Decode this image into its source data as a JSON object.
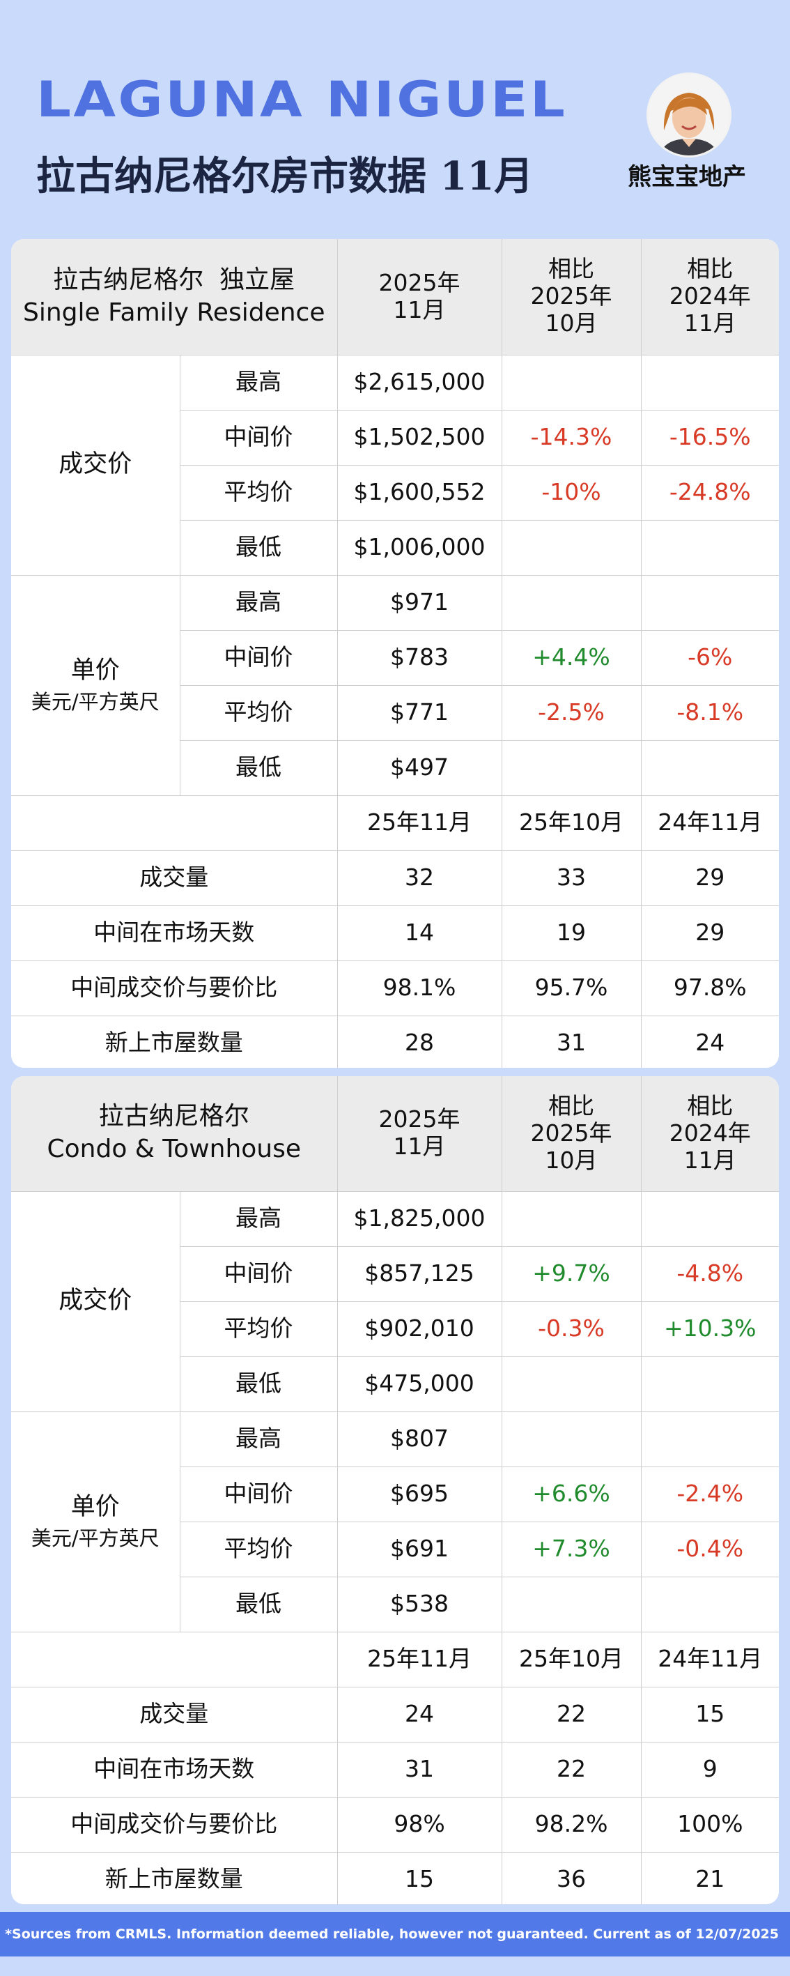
{
  "header": {
    "title": "LAGUNA NIGUEL",
    "subtitle": "拉古纳尼格尔房市数据 11月",
    "agency": "熊宝宝地产"
  },
  "sections": [
    {
      "header": {
        "type_cn": "拉古纳尼格尔  独立屋",
        "type_en": "Single Family Residence",
        "col_current": [
          "2025年",
          "11月"
        ],
        "col_mom": [
          "相比",
          "2025年",
          "10月"
        ],
        "col_yoy": [
          "相比",
          "2024年",
          "11月"
        ]
      },
      "price": {
        "group": "成交价",
        "rows": [
          {
            "label": "最高",
            "value": "$2,615,000",
            "mom": "",
            "yoy": ""
          },
          {
            "label": "中间价",
            "value": "$1,502,500",
            "mom": "-14.3%",
            "yoy": "-16.5%"
          },
          {
            "label": "平均价",
            "value": "$1,600,552",
            "mom": "-10%",
            "yoy": "-24.8%"
          },
          {
            "label": "最低",
            "value": "$1,006,000",
            "mom": "",
            "yoy": ""
          }
        ]
      },
      "unit_price": {
        "group": "单价",
        "unit": "美元/平方英尺",
        "rows": [
          {
            "label": "最高",
            "value": "$971",
            "mom": "",
            "yoy": ""
          },
          {
            "label": "中间价",
            "value": "$783",
            "mom": "+4.4%",
            "yoy": "-6%"
          },
          {
            "label": "平均价",
            "value": "$771",
            "mom": "-2.5%",
            "yoy": "-8.1%"
          },
          {
            "label": "最低",
            "value": "$497",
            "mom": "",
            "yoy": ""
          }
        ]
      },
      "periods": [
        "25年11月",
        "25年10月",
        "24年11月"
      ],
      "stats": [
        {
          "label": "成交量",
          "values": [
            "32",
            "33",
            "29"
          ]
        },
        {
          "label": "中间在市场天数",
          "values": [
            "14",
            "19",
            "29"
          ]
        },
        {
          "label": "中间成交价与要价比",
          "values": [
            "98.1%",
            "95.7%",
            "97.8%"
          ]
        },
        {
          "label": "新上市屋数量",
          "values": [
            "28",
            "31",
            "24"
          ]
        }
      ]
    },
    {
      "header": {
        "type_cn": "拉古纳尼格尔",
        "type_en": "Condo & Townhouse",
        "col_current": [
          "2025年",
          "11月"
        ],
        "col_mom": [
          "相比",
          "2025年",
          "10月"
        ],
        "col_yoy": [
          "相比",
          "2024年",
          "11月"
        ]
      },
      "price": {
        "group": "成交价",
        "rows": [
          {
            "label": "最高",
            "value": "$1,825,000",
            "mom": "",
            "yoy": ""
          },
          {
            "label": "中间价",
            "value": "$857,125",
            "mom": "+9.7%",
            "yoy": "-4.8%"
          },
          {
            "label": "平均价",
            "value": "$902,010",
            "mom": "-0.3%",
            "yoy": "+10.3%"
          },
          {
            "label": "最低",
            "value": "$475,000",
            "mom": "",
            "yoy": ""
          }
        ]
      },
      "unit_price": {
        "group": "单价",
        "unit": "美元/平方英尺",
        "rows": [
          {
            "label": "最高",
            "value": "$807",
            "mom": "",
            "yoy": ""
          },
          {
            "label": "中间价",
            "value": "$695",
            "mom": "+6.6%",
            "yoy": "-2.4%"
          },
          {
            "label": "平均价",
            "value": "$691",
            "mom": "+7.3%",
            "yoy": "-0.4%"
          },
          {
            "label": "最低",
            "value": "$538",
            "mom": "",
            "yoy": ""
          }
        ]
      },
      "periods": [
        "25年11月",
        "25年10月",
        "24年11月"
      ],
      "stats": [
        {
          "label": "成交量",
          "values": [
            "24",
            "22",
            "15"
          ]
        },
        {
          "label": "中间在市场天数",
          "values": [
            "31",
            "22",
            "9"
          ]
        },
        {
          "label": "中间成交价与要价比",
          "values": [
            "98%",
            "98.2%",
            "100%"
          ]
        },
        {
          "label": "新上市屋数量",
          "values": [
            "15",
            "36",
            "21"
          ]
        }
      ]
    }
  ],
  "colors": {
    "background": "#c9dafa",
    "title_blue": "#4f72e0",
    "negative": "#d83a26",
    "positive": "#1f8b2c",
    "footer_bar": "#5279e8",
    "table_header": "#ebebeb"
  },
  "footer": {
    "note": "*Sources from CRMLS. Information deemed reliable, however not guaranteed. Current as of 12/07/2025"
  }
}
